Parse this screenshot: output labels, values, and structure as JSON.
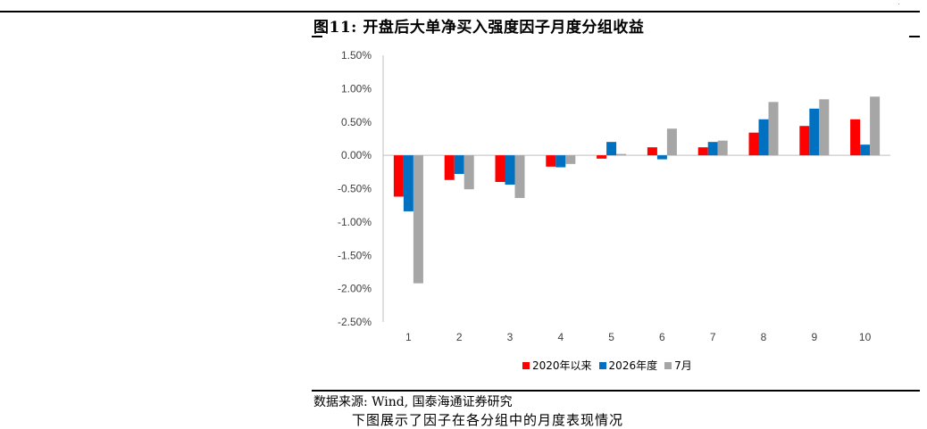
{
  "figure": {
    "title": "图11:  开盘后大单净买入强度因子月度分组收益"
  },
  "source": "数据来源:  Wind, 国泰海通证券研究",
  "overflow_text": "下图展示了因子在各分组中的月度表现情况",
  "chart_data": {
    "type": "bar",
    "categories": [
      "1",
      "2",
      "3",
      "4",
      "5",
      "6",
      "7",
      "8",
      "9",
      "10"
    ],
    "series": [
      {
        "name": "2020年以来",
        "color": "#ff0000",
        "values": [
          -0.62,
          -0.37,
          -0.4,
          -0.17,
          -0.05,
          0.12,
          0.12,
          0.34,
          0.44,
          0.54
        ]
      },
      {
        "name": "2026年度",
        "color": "#0070c0",
        "values": [
          -0.84,
          -0.28,
          -0.44,
          -0.18,
          0.2,
          -0.06,
          0.2,
          0.54,
          0.7,
          0.16
        ]
      },
      {
        "name": "7月",
        "color": "#a6a6a6",
        "values": [
          -1.92,
          -0.51,
          -0.64,
          -0.13,
          0.02,
          0.4,
          0.22,
          0.8,
          0.84,
          0.88
        ]
      }
    ],
    "yticks": [
      "1.50%",
      "1.00%",
      "0.50%",
      "0.00%",
      "-0.50%",
      "-1.00%",
      "-1.50%",
      "-2.00%",
      "-2.50%"
    ],
    "ylim": [
      -2.5,
      1.5
    ],
    "legend_position": "bottom"
  }
}
